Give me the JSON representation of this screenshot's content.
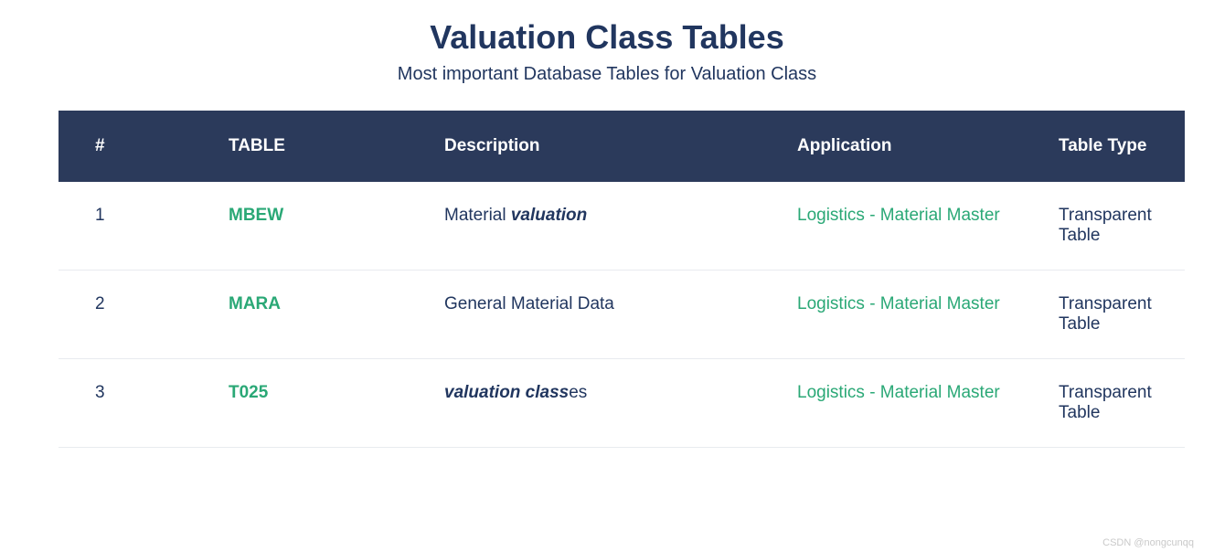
{
  "header": {
    "title": "Valuation Class Tables",
    "subtitle": "Most important Database Tables for Valuation Class"
  },
  "table": {
    "columns": [
      "#",
      "TABLE",
      "Description",
      "Application",
      "Table Type"
    ],
    "rows": [
      {
        "num": "1",
        "name": "MBEW",
        "desc_prefix": "Material ",
        "desc_em": "valuation",
        "desc_suffix": "",
        "application": "Logistics - Material Master",
        "type": "Transparent Table"
      },
      {
        "num": "2",
        "name": "MARA",
        "desc_prefix": "General Material Data",
        "desc_em": "",
        "desc_suffix": "",
        "application": "Logistics - Material Master",
        "type": "Transparent Table"
      },
      {
        "num": "3",
        "name": "T025",
        "desc_prefix": "",
        "desc_em": "valuation class",
        "desc_suffix": "es",
        "application": "Logistics - Material Master",
        "type": "Transparent Table"
      }
    ]
  },
  "colors": {
    "header_bg": "#2b3a5b",
    "text_primary": "#21365f",
    "link_green": "#2aa876",
    "row_border": "#e8ebef",
    "white": "#ffffff"
  },
  "watermark": "CSDN @nongcunqq"
}
